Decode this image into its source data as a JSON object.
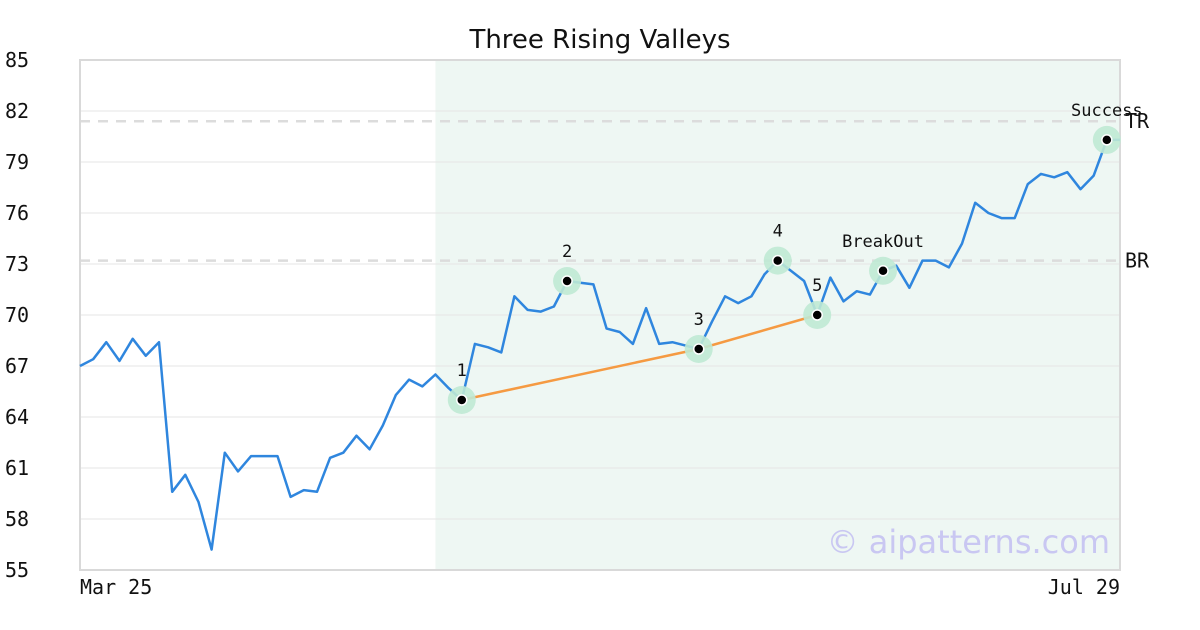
{
  "chart_data": {
    "type": "line",
    "title": "Three Rising Valleys",
    "xlabel": "",
    "ylabel": "",
    "ylim": [
      55,
      85
    ],
    "y_ticks": [
      "55",
      "58",
      "61",
      "64",
      "67",
      "70",
      "73",
      "76",
      "79",
      "82",
      "85"
    ],
    "x_tick_labels": [
      "Mar 25",
      "Jul 29"
    ],
    "grid": "horizontal",
    "series": [
      {
        "color": "#2f86de",
        "values": [
          67.0,
          67.4,
          68.4,
          67.3,
          68.6,
          67.6,
          68.4,
          59.6,
          60.6,
          59.0,
          56.2,
          61.9,
          60.8,
          61.7,
          61.7,
          61.7,
          59.3,
          59.7,
          59.6,
          61.6,
          61.9,
          62.9,
          62.1,
          63.5,
          65.3,
          66.2,
          65.8,
          66.5,
          65.7,
          65.0,
          68.3,
          68.1,
          67.8,
          71.1,
          70.3,
          70.2,
          70.5,
          72.0,
          71.9,
          71.8,
          69.2,
          69.0,
          68.3,
          70.4,
          68.3,
          68.4,
          68.2,
          68.0,
          69.6,
          71.1,
          70.7,
          71.1,
          72.4,
          73.2,
          72.6,
          72.0,
          70.0,
          72.2,
          70.8,
          71.4,
          71.2,
          72.6,
          72.9,
          71.6,
          73.2,
          73.2,
          72.8,
          74.2,
          76.6,
          76.0,
          75.7,
          75.7,
          77.7,
          78.3,
          78.1,
          78.4,
          77.4,
          78.2,
          80.3,
          80.3
        ]
      }
    ],
    "levels": [
      {
        "label": "TR",
        "value": 81.4
      },
      {
        "label": "BR",
        "value": 73.2
      }
    ],
    "highlight_range": {
      "start_index": 27,
      "end_index": 79,
      "color": "#eef7f3"
    },
    "trendline": {
      "color": "#f59a42",
      "points": [
        {
          "index": 29,
          "value": 65.0
        },
        {
          "index": 47,
          "value": 68.0
        },
        {
          "index": 56,
          "value": 70.0
        }
      ]
    },
    "markers": [
      {
        "label": "1",
        "index": 29,
        "value": 65.0,
        "label_pos": "above"
      },
      {
        "label": "2",
        "index": 37,
        "value": 72.0,
        "label_pos": "above"
      },
      {
        "label": "3",
        "index": 47,
        "value": 68.0,
        "label_pos": "above"
      },
      {
        "label": "4",
        "index": 53,
        "value": 73.2,
        "label_pos": "above"
      },
      {
        "label": "5",
        "index": 56,
        "value": 70.0,
        "label_pos": "above"
      },
      {
        "label": "BreakOut",
        "index": 61,
        "value": 72.6,
        "label_pos": "above"
      },
      {
        "label": "Success",
        "index": 78,
        "value": 80.3,
        "label_pos": "above"
      }
    ],
    "marker_halo_color": "#bfe9d4",
    "watermark": "© aipatterns.com"
  }
}
